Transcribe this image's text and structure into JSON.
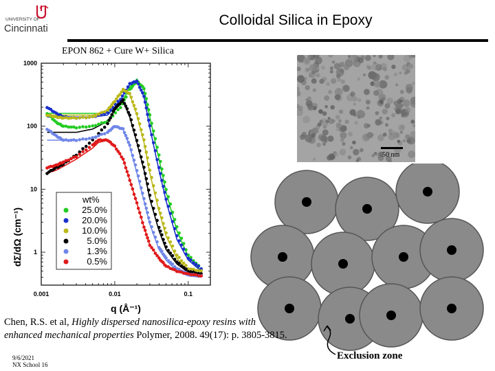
{
  "header": {
    "logo_top": "UNIVERSITY OF",
    "logo_bottom": "Cincinnati",
    "title": "Colloidal Silica in Epoxy"
  },
  "subtitle": "EPON 862 + Cure W+ Silica",
  "chart_data": {
    "type": "scatter",
    "xscale": "log",
    "yscale": "log",
    "xlim": [
      0.001,
      0.2
    ],
    "ylim": [
      0.3,
      1000
    ],
    "xlabel": "q (Å⁻¹)",
    "ylabel": "dΣ/dΩ (cm⁻¹)",
    "xticks": [
      "0.001",
      "0.01",
      "0.1"
    ],
    "yticks": [
      "1",
      "10",
      "100",
      "1000"
    ],
    "legend_title": "wt%",
    "series": [
      {
        "name": "25.0%",
        "color": "#22cc22",
        "x": [
          0.0012,
          0.0016,
          0.002,
          0.003,
          0.005,
          0.008,
          0.012,
          0.016,
          0.02,
          0.025,
          0.03,
          0.04,
          0.05,
          0.07,
          0.1,
          0.15
        ],
        "y": [
          160,
          115,
          100,
          95,
          100,
          120,
          200,
          380,
          520,
          400,
          150,
          35,
          10,
          2.5,
          0.9,
          0.55
        ],
        "fit": [
          160,
          160,
          160,
          160,
          160,
          160,
          220,
          420,
          560,
          380,
          140,
          30,
          9,
          2.2,
          0.85,
          0.5
        ]
      },
      {
        "name": "20.0%",
        "color": "#1a2fcc",
        "x": [
          0.0012,
          0.0016,
          0.002,
          0.003,
          0.005,
          0.008,
          0.012,
          0.016,
          0.02,
          0.025,
          0.03,
          0.04,
          0.05,
          0.07,
          0.1,
          0.15
        ],
        "y": [
          200,
          160,
          140,
          135,
          140,
          165,
          270,
          470,
          520,
          300,
          100,
          22,
          7,
          1.8,
          0.8,
          0.55
        ],
        "fit": [
          140,
          140,
          140,
          140,
          140,
          150,
          260,
          460,
          520,
          290,
          95,
          20,
          6.5,
          1.6,
          0.75,
          0.5
        ]
      },
      {
        "name": "10.0%",
        "color": "#bbb81a",
        "x": [
          0.0012,
          0.0016,
          0.002,
          0.003,
          0.005,
          0.008,
          0.01,
          0.013,
          0.016,
          0.02,
          0.025,
          0.03,
          0.04,
          0.05,
          0.07,
          0.1,
          0.15
        ],
        "y": [
          150,
          140,
          135,
          135,
          140,
          180,
          250,
          380,
          330,
          160,
          60,
          20,
          5,
          2,
          0.9,
          0.55,
          0.5
        ],
        "fit": [
          150,
          150,
          150,
          150,
          150,
          180,
          250,
          370,
          320,
          150,
          55,
          18,
          4.5,
          1.8,
          0.8,
          0.5,
          0.45
        ]
      },
      {
        "name": "5.0%",
        "color": "#000000",
        "x": [
          0.0012,
          0.0016,
          0.002,
          0.003,
          0.005,
          0.008,
          0.01,
          0.013,
          0.016,
          0.02,
          0.025,
          0.03,
          0.04,
          0.05,
          0.07,
          0.1,
          0.15
        ],
        "y": [
          18,
          22,
          25,
          35,
          60,
          110,
          190,
          260,
          150,
          60,
          22,
          8,
          2.5,
          1.2,
          0.7,
          0.5,
          0.45
        ],
        "fit": [
          80,
          80,
          80,
          80,
          90,
          120,
          180,
          250,
          140,
          55,
          20,
          7,
          2.2,
          1.1,
          0.65,
          0.48,
          0.42
        ]
      },
      {
        "name": "1.3%",
        "color": "#6f86e8",
        "x": [
          0.0012,
          0.0016,
          0.002,
          0.003,
          0.005,
          0.008,
          0.01,
          0.013,
          0.016,
          0.02,
          0.025,
          0.03,
          0.04,
          0.05,
          0.07,
          0.1,
          0.15
        ],
        "y": [
          90,
          70,
          60,
          60,
          65,
          80,
          100,
          90,
          50,
          20,
          7,
          3,
          1.2,
          0.8,
          0.55,
          0.45,
          0.42
        ],
        "fit": [
          60,
          60,
          60,
          60,
          65,
          80,
          100,
          88,
          48,
          18,
          6.5,
          2.8,
          1.1,
          0.75,
          0.5,
          0.42,
          0.4
        ]
      },
      {
        "name": "0.5%",
        "color": "#e01a1a",
        "x": [
          0.0012,
          0.0016,
          0.002,
          0.003,
          0.005,
          0.006,
          0.008,
          0.01,
          0.013,
          0.016,
          0.02,
          0.025,
          0.03,
          0.04,
          0.05,
          0.07,
          0.1,
          0.15
        ],
        "y": [
          22,
          24,
          27,
          33,
          50,
          60,
          60,
          48,
          30,
          14,
          6,
          2.5,
          1.3,
          0.8,
          0.6,
          0.5,
          0.45,
          0.42
        ],
        "fit": [
          18,
          20,
          23,
          30,
          45,
          55,
          60,
          48,
          30,
          14,
          6,
          2.5,
          1.3,
          0.8,
          0.6,
          0.5,
          0.45,
          0.42
        ]
      }
    ]
  },
  "tem": {
    "scale_label": "50 nm"
  },
  "exclusion_label": "Exclusion zone",
  "citation": {
    "authors": "Chen, R.S. et al,",
    "title": "Highly dispersed nanosilica-epoxy resins with enhanced mechanical properties",
    "journal": "Polymer, 2008. 49(17): p. 3805-3815."
  },
  "footer": {
    "date": "9/6/2021",
    "event": "NX School 16"
  },
  "colors": {
    "circle_fill": "#8a8a8a",
    "circle_stroke": "#555555",
    "tem_background": "#9a9a9a"
  }
}
